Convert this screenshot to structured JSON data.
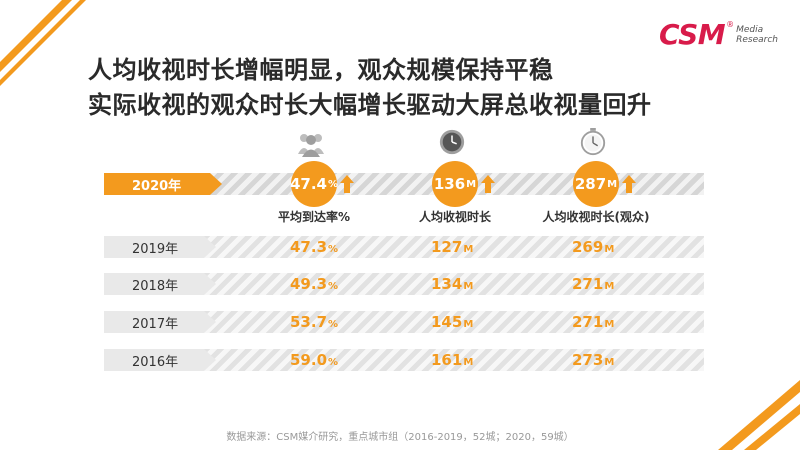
{
  "title_line1": "人均收视时长增幅明显，观众规模保持平稳",
  "title_line2": "实际收视的观众时长大幅增长驱动大屏总收视量回升",
  "logo": {
    "brand": "CSM",
    "reg": "®",
    "sub1": "Media",
    "sub2": "Research"
  },
  "source": "数据来源：CSM媒介研究，重点城市组（2016-2019，52城；2020，59城）",
  "colors": {
    "accent": "#f39a1e",
    "brand": "#d81b4a",
    "text": "#2a2a2a"
  },
  "icons": [
    "people-icon",
    "clock-icon",
    "stopwatch-icon",
    "up-arrow-icon"
  ],
  "chart_data": {
    "type": "table",
    "metrics": [
      {
        "label": "平均到达率%",
        "unit": "%"
      },
      {
        "label": "人均收视时长",
        "unit": "M"
      },
      {
        "label": "人均收视时长(观众)",
        "unit": "M"
      }
    ],
    "rows": [
      {
        "year": "2020年",
        "values": [
          "47.4",
          "136",
          "287"
        ],
        "current": true,
        "increase": [
          true,
          true,
          true
        ]
      },
      {
        "year": "2019年",
        "values": [
          "47.3",
          "127",
          "269"
        ]
      },
      {
        "year": "2018年",
        "values": [
          "49.3",
          "134",
          "271"
        ]
      },
      {
        "year": "2017年",
        "values": [
          "53.7",
          "145",
          "271"
        ]
      },
      {
        "year": "2016年",
        "values": [
          "59.0",
          "161",
          "273"
        ]
      }
    ]
  }
}
